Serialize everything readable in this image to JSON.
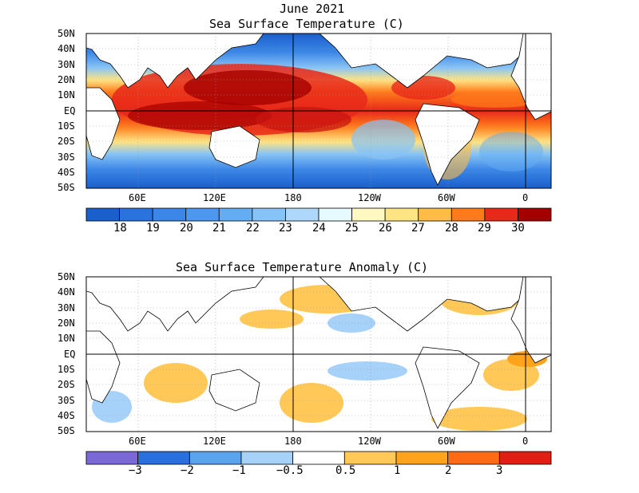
{
  "title_date": "June 2021",
  "panels": [
    {
      "id": "sst",
      "title": "Sea Surface Temperature (C)",
      "lat_labels": [
        "50N",
        "40N",
        "30N",
        "20N",
        "10N",
        "EQ",
        "10S",
        "20S",
        "30S",
        "40S",
        "50S"
      ],
      "lon_labels": [
        "60E",
        "120E",
        "180",
        "120W",
        "60W",
        "0"
      ],
      "colorbar": {
        "colors": [
          "#1a5fcc",
          "#2a73dd",
          "#3b86e6",
          "#4d98ee",
          "#64adf3",
          "#86c3f7",
          "#aed8fb",
          "#e6fbff",
          "#fff8c0",
          "#ffe484",
          "#ffbd45",
          "#ff7a1a",
          "#e8281a",
          "#a50000"
        ],
        "labels": [
          "18",
          "19",
          "20",
          "21",
          "22",
          "23",
          "24",
          "25",
          "26",
          "27",
          "28",
          "29",
          "30"
        ]
      }
    },
    {
      "id": "anomaly",
      "title": "Sea Surface Temperature Anomaly (C)",
      "lat_labels": [
        "50N",
        "40N",
        "30N",
        "20N",
        "10N",
        "EQ",
        "10S",
        "20S",
        "30S",
        "40S",
        "50S"
      ],
      "lon_labels": [
        "60E",
        "120E",
        "180",
        "120W",
        "60W",
        "0"
      ],
      "colorbar": {
        "colors": [
          "#7a68d8",
          "#2a6fe0",
          "#5aa3ee",
          "#a6d1f8",
          "#ffffff",
          "#ffc857",
          "#ffa21c",
          "#ff6a14",
          "#e01e14"
        ],
        "labels": [
          "−3",
          "−2",
          "−1",
          "−0.5",
          "0.5",
          "1",
          "2",
          "3"
        ]
      }
    }
  ]
}
